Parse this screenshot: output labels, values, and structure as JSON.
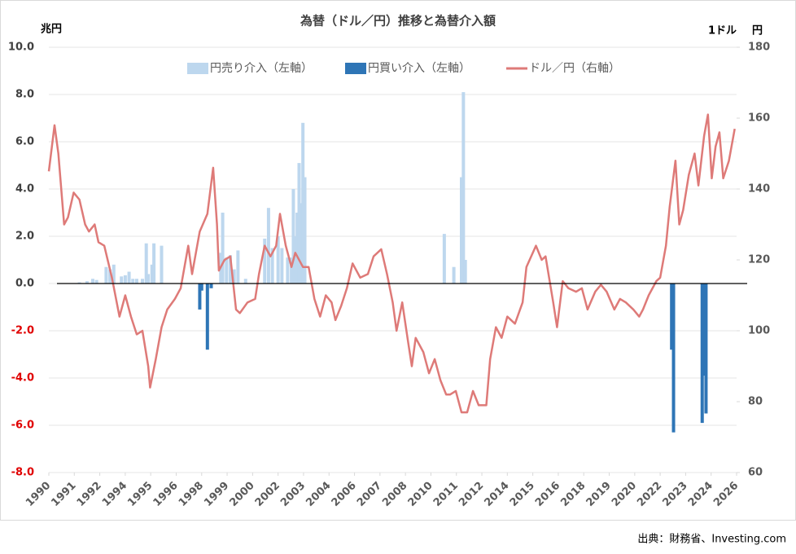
{
  "chart_data": {
    "type": "combo",
    "title": "為替（ドル／円）推移と為替介入額",
    "y_label": "兆円",
    "y2_unit": "1ドル",
    "y2_label": "円",
    "source": "出典：財務省、Investing.com",
    "legend": "top",
    "xlim": [
      1990,
      2026
    ],
    "xticks": [
      {
        "value": 1990,
        "label": "1990"
      },
      {
        "value": 1991.333,
        "label": "1991"
      },
      {
        "value": 1992.667,
        "label": "1992"
      },
      {
        "value": 1994,
        "label": "1994"
      },
      {
        "value": 1995.333,
        "label": "1995"
      },
      {
        "value": 1996.667,
        "label": "1996"
      },
      {
        "value": 1998,
        "label": "1998"
      },
      {
        "value": 1999.333,
        "label": "1999"
      },
      {
        "value": 2000.667,
        "label": "2000"
      },
      {
        "value": 2002,
        "label": "2002"
      },
      {
        "value": 2003.333,
        "label": "2003"
      },
      {
        "value": 2004.667,
        "label": "2004"
      },
      {
        "value": 2006,
        "label": "2006"
      },
      {
        "value": 2007.333,
        "label": "2007"
      },
      {
        "value": 2008.667,
        "label": "2008"
      },
      {
        "value": 2010,
        "label": "2010"
      },
      {
        "value": 2011.333,
        "label": "2011"
      },
      {
        "value": 2012.667,
        "label": "2012"
      },
      {
        "value": 2014,
        "label": "2014"
      },
      {
        "value": 2015.333,
        "label": "2015"
      },
      {
        "value": 2016.667,
        "label": "2016"
      },
      {
        "value": 2018,
        "label": "2018"
      },
      {
        "value": 2019.333,
        "label": "2019"
      },
      {
        "value": 2020.667,
        "label": "2020"
      },
      {
        "value": 2022,
        "label": "2022"
      },
      {
        "value": 2023.333,
        "label": "2023"
      },
      {
        "value": 2024.667,
        "label": "2024"
      },
      {
        "value": 2026,
        "label": "2026"
      }
    ],
    "ylim": [
      -8,
      10
    ],
    "yticks": [
      {
        "value": 10,
        "label": "10.0"
      },
      {
        "value": 8,
        "label": "8.0"
      },
      {
        "value": 6,
        "label": "6.0"
      },
      {
        "value": 4,
        "label": "4.0"
      },
      {
        "value": 2,
        "label": "2.0"
      },
      {
        "value": 0,
        "label": "0.0"
      },
      {
        "value": -2,
        "label": "-2.0"
      },
      {
        "value": -4,
        "label": "-4.0"
      },
      {
        "value": -6,
        "label": "-6.0"
      },
      {
        "value": -8,
        "label": "-8.0"
      }
    ],
    "y2lim": [
      60,
      180
    ],
    "y2ticks": [
      180,
      160,
      140,
      120,
      100,
      80,
      60
    ],
    "series": [
      {
        "name": "円売り介入（左軸）",
        "type": "bar",
        "color": "#bdd7ee",
        "x": [
          1991.6,
          1992.0,
          1992.3,
          1992.5,
          1993.0,
          1993.2,
          1993.4,
          1993.8,
          1994.0,
          1994.2,
          1994.4,
          1994.6,
          1994.9,
          1995.1,
          1995.2,
          1995.4,
          1995.5,
          1995.9,
          1999.0,
          1999.1,
          1999.3,
          1999.5,
          1999.7,
          1999.9,
          2000.3,
          2001.3,
          2001.5,
          2001.7,
          2002.0,
          2002.2,
          2002.5,
          2002.7,
          2002.8,
          2002.9,
          2003.0,
          2003.1,
          2003.2,
          2003.3,
          2003.4,
          2010.7,
          2011.2,
          2011.6,
          2011.7,
          2011.8
        ],
        "values": [
          0.05,
          0.1,
          0.2,
          0.15,
          0.7,
          0.6,
          0.8,
          0.3,
          0.35,
          0.5,
          0.2,
          0.2,
          0.2,
          1.7,
          0.4,
          0.8,
          1.7,
          1.6,
          1.3,
          3.0,
          1.1,
          1.2,
          0.6,
          1.4,
          0.2,
          1.9,
          3.2,
          1.5,
          2.0,
          1.5,
          1.1,
          1.1,
          4.0,
          2.0,
          3.0,
          5.1,
          3.4,
          6.8,
          4.5,
          2.1,
          0.7,
          4.5,
          8.1,
          1.0
        ]
      },
      {
        "name": "円買い介入（左軸）",
        "type": "bar",
        "color": "#2e75b6",
        "x": [
          1997.9,
          1998.0,
          1998.3,
          1998.5,
          2022.6,
          2022.7,
          2024.2,
          2024.3,
          2024.4
        ],
        "values": [
          -1.1,
          -0.3,
          -2.8,
          -0.2,
          -2.8,
          -6.3,
          -5.9,
          -3.9,
          -5.5
        ]
      },
      {
        "name": "ドル／円（右軸）",
        "type": "line",
        "axis": "y2",
        "color": "#de7a78",
        "x": [
          1990.0,
          1990.3,
          1990.5,
          1990.8,
          1991.0,
          1991.3,
          1991.6,
          1991.9,
          1992.1,
          1992.4,
          1992.6,
          1992.9,
          1993.3,
          1993.7,
          1994.0,
          1994.3,
          1994.6,
          1994.9,
          1995.2,
          1995.3,
          1995.6,
          1995.9,
          1996.2,
          1996.6,
          1996.9,
          1997.3,
          1997.5,
          1997.9,
          1998.3,
          1998.6,
          1998.8,
          1998.9,
          1999.2,
          1999.5,
          1999.8,
          2000.0,
          2000.4,
          2000.8,
          2001.0,
          2001.3,
          2001.6,
          2001.9,
          2002.1,
          2002.4,
          2002.7,
          2002.9,
          2003.3,
          2003.6,
          2003.9,
          2004.2,
          2004.5,
          2004.8,
          2005.0,
          2005.3,
          2005.6,
          2005.9,
          2006.3,
          2006.7,
          2007.0,
          2007.4,
          2007.7,
          2008.0,
          2008.2,
          2008.5,
          2008.8,
          2009.0,
          2009.2,
          2009.6,
          2009.9,
          2010.2,
          2010.5,
          2010.8,
          2011.0,
          2011.3,
          2011.6,
          2011.9,
          2012.2,
          2012.5,
          2012.9,
          2013.1,
          2013.4,
          2013.7,
          2014.0,
          2014.4,
          2014.8,
          2015.0,
          2015.5,
          2015.8,
          2016.0,
          2016.4,
          2016.6,
          2016.9,
          2017.2,
          2017.6,
          2017.9,
          2018.2,
          2018.6,
          2018.9,
          2019.2,
          2019.6,
          2019.9,
          2020.2,
          2020.6,
          2020.9,
          2021.1,
          2021.4,
          2021.8,
          2022.0,
          2022.3,
          2022.5,
          2022.8,
          2023.0,
          2023.2,
          2023.5,
          2023.8,
          2024.0,
          2024.3,
          2024.5,
          2024.7,
          2024.9,
          2025.1,
          2025.3,
          2025.6,
          2025.9
        ],
        "values": [
          145,
          158,
          150,
          130,
          132,
          139,
          137,
          130,
          128,
          130,
          125,
          124,
          115,
          104,
          110,
          104,
          99,
          100,
          90,
          84,
          92,
          101,
          106,
          109,
          112,
          124,
          116,
          128,
          133,
          146,
          130,
          117,
          120,
          121,
          106,
          105,
          108,
          109,
          116,
          124,
          121,
          124,
          133,
          124,
          118,
          122,
          118,
          118,
          109,
          104,
          110,
          108,
          103,
          107,
          112,
          119,
          115,
          116,
          121,
          123,
          116,
          108,
          100,
          108,
          97,
          90,
          98,
          94,
          88,
          92,
          86,
          82,
          82,
          83,
          77,
          77,
          83,
          79,
          79,
          92,
          101,
          98,
          104,
          102,
          108,
          118,
          124,
          120,
          121,
          108,
          101,
          114,
          112,
          111,
          112,
          106,
          111,
          113,
          111,
          106,
          109,
          108,
          106,
          104,
          106,
          110,
          114,
          115,
          124,
          135,
          148,
          130,
          134,
          144,
          150,
          141,
          155,
          161,
          143,
          152,
          156,
          143,
          148,
          157
        ]
      }
    ]
  }
}
